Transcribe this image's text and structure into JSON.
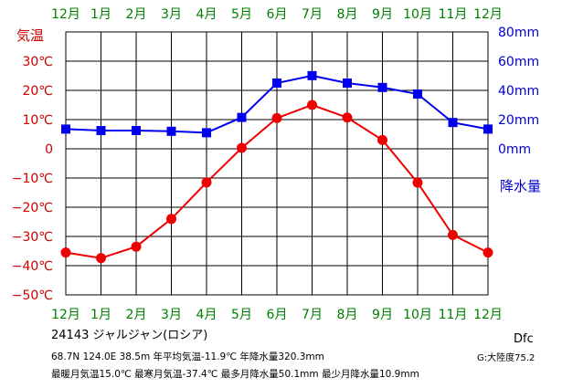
{
  "chart_data": {
    "type": "line",
    "categories": [
      "12月",
      "1月",
      "2月",
      "3月",
      "4月",
      "5月",
      "6月",
      "7月",
      "8月",
      "9月",
      "10月",
      "11月",
      "12月"
    ],
    "temp_axis": {
      "label": "気温",
      "ticks": [
        "30℃",
        "20℃",
        "10℃",
        "0",
        "−10℃",
        "−20℃",
        "−30℃",
        "−40℃",
        "−50℃"
      ],
      "ylim": [
        -50,
        40
      ],
      "color": "#cc0000"
    },
    "precip_axis": {
      "label": "降水量",
      "ticks": [
        "80mm",
        "60mm",
        "40mm",
        "20mm",
        "0mm"
      ],
      "ylim": [
        -100,
        80
      ],
      "color": "#0000cc"
    },
    "month_label_color": "#008000",
    "grid": true,
    "series": [
      {
        "name": "気温",
        "axis": "temp",
        "color": "#ee0000",
        "marker": "circle",
        "values": [
          -35.5,
          -37.4,
          -33.5,
          -24.0,
          -11.5,
          0.3,
          10.5,
          15.0,
          10.7,
          3.0,
          -11.6,
          -29.5,
          -35.5
        ]
      },
      {
        "name": "降水量",
        "axis": "precip",
        "color": "#0000ee",
        "marker": "square",
        "values": [
          13.5,
          12.5,
          12.5,
          12.0,
          11.0,
          21.5,
          45.0,
          50.1,
          45.0,
          42.0,
          37.5,
          18.0,
          13.5
        ]
      }
    ]
  },
  "info": {
    "station": "24143  ジャルジャン(ロシア)",
    "stats1": "68.7N  124.0E  38.5m 年平均気温-11.9℃ 年降水量320.3mm",
    "stats2": "最暖月気温15.0℃ 最寒月気温-37.4℃ 最多月降水量50.1mm 最少月降水量10.9mm",
    "climate_class": "Dfc",
    "region": "G:大陸度75.2"
  }
}
